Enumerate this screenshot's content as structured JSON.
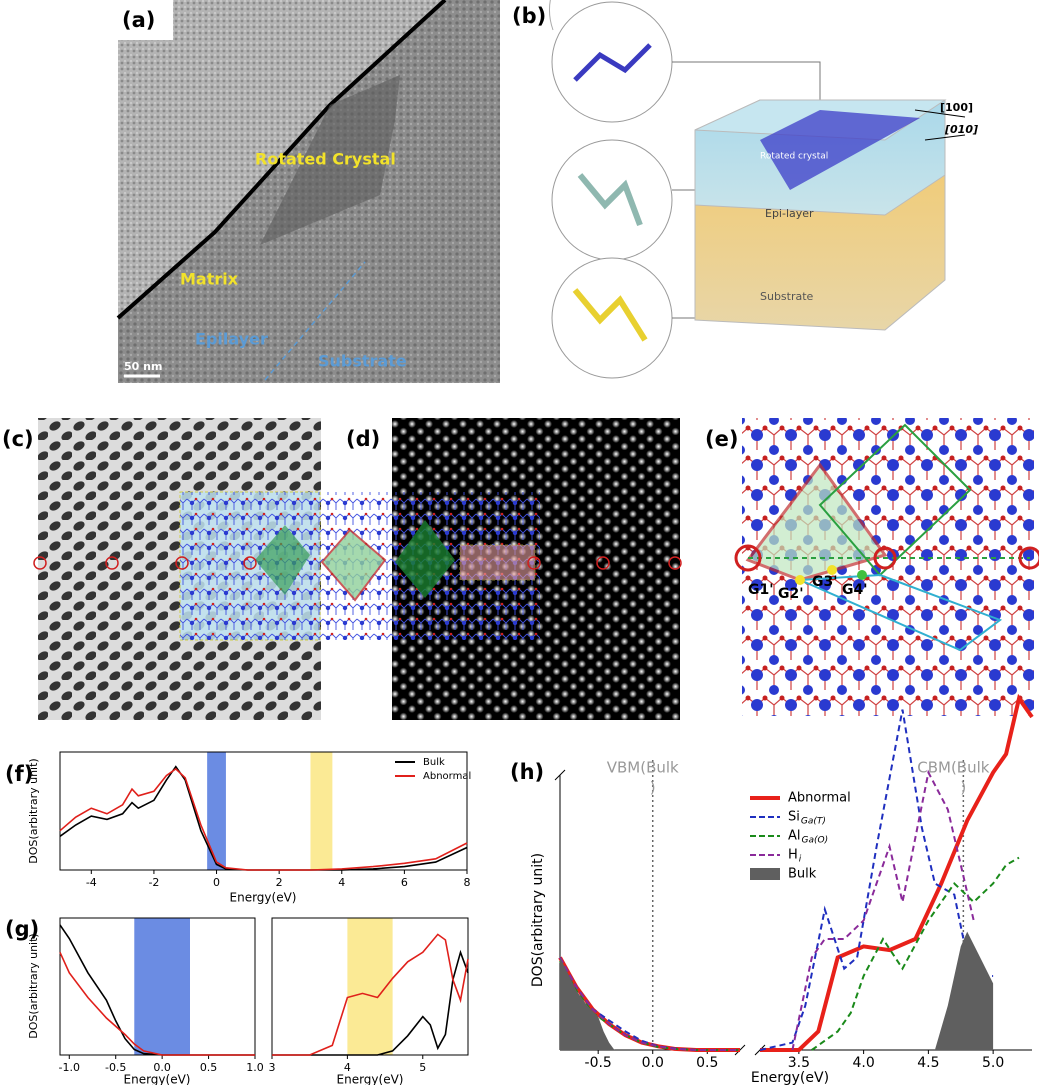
{
  "figure": {
    "a": {
      "label": "(a)",
      "rotated_crystal": "Rotated Crystal",
      "matrix": "Matrix",
      "epilayer": "Epilayer",
      "substrate": "Substrate",
      "scale": "50 nm"
    },
    "b": {
      "label": "(b)",
      "dir1": "[100]",
      "dir2": "[010]",
      "rotated_crystal": "Rotated crystal",
      "epi_layer": "Epi-layer",
      "substrate": "Substrate"
    },
    "c": {
      "label": "(c)"
    },
    "d": {
      "label": "(d)"
    },
    "e": {
      "label": "(e)",
      "sites": [
        "G1'",
        "G2'",
        "G3'",
        "G4'"
      ]
    }
  },
  "chart_data": [
    {
      "type": "line",
      "panel_label": "(f)",
      "xlabel": "Energy(eV)",
      "ylabel": "DOS(arbitrary unit)",
      "panels": [
        {
          "xlim": [
            -5,
            8
          ],
          "xticks": [
            -4,
            -2,
            0,
            2,
            4,
            6,
            8
          ],
          "spans": [
            {
              "from": -0.3,
              "to": 0.3,
              "color": "#5b7fe0"
            },
            {
              "from": 3.0,
              "to": 3.7,
              "color": "#fbe88a"
            }
          ]
        }
      ],
      "ylim": [
        0,
        1.05
      ],
      "legend": "upper right",
      "series": [
        {
          "name": "Bulk",
          "color": "#000000",
          "x": [
            -5,
            -4.5,
            -4,
            -3.5,
            -3,
            -2.7,
            -2.5,
            -2,
            -1.6,
            -1.3,
            -1,
            -0.5,
            0,
            0.3,
            1,
            2,
            3,
            4,
            5,
            6,
            7,
            8
          ],
          "values": [
            0.3,
            0.4,
            0.48,
            0.45,
            0.5,
            0.6,
            0.55,
            0.62,
            0.8,
            0.92,
            0.8,
            0.35,
            0.05,
            0.01,
            0,
            0,
            0,
            0,
            0.01,
            0.03,
            0.07,
            0.2
          ]
        },
        {
          "name": "Abnormal",
          "color": "#e0201b",
          "x": [
            -5,
            -4.5,
            -4,
            -3.5,
            -3,
            -2.7,
            -2.5,
            -2,
            -1.6,
            -1.3,
            -1,
            -0.5,
            0,
            0.3,
            1,
            2,
            3,
            4,
            5,
            6,
            7,
            8
          ],
          "values": [
            0.35,
            0.47,
            0.55,
            0.5,
            0.58,
            0.72,
            0.66,
            0.7,
            0.84,
            0.9,
            0.82,
            0.4,
            0.07,
            0.02,
            0,
            0,
            0,
            0.01,
            0.03,
            0.06,
            0.1,
            0.24
          ]
        }
      ]
    },
    {
      "type": "line",
      "panel_label": "(g)",
      "xlabel": "Energy(eV)",
      "ylabel": "DOS(arbitrary unit)",
      "panels": [
        {
          "xlim": [
            -1.1,
            1.0
          ],
          "xticks": [
            {
              "value": -1,
              "label": "-1.0"
            },
            -0.5,
            {
              "value": 0,
              "label": "0.0"
            },
            0.5,
            {
              "value": 1,
              "label": "1.0"
            }
          ],
          "spans": [
            {
              "from": -0.3,
              "to": 0.3,
              "color": "#5b7fe0"
            }
          ]
        },
        {
          "xlim": [
            3,
            5.6
          ],
          "xticks": [
            3,
            4,
            5
          ],
          "spans": [
            {
              "from": 4.0,
              "to": 4.6,
              "color": "#fbe88a"
            }
          ]
        }
      ],
      "ylim": [
        0,
        1
      ],
      "series": [
        {
          "color": "#000000",
          "x": [
            -1.1,
            -1.0,
            -0.8,
            -0.6,
            -0.5,
            -0.4,
            -0.3,
            -0.2,
            0,
            1.0,
            null,
            3,
            4.4,
            4.6,
            4.8,
            5.0,
            5.1,
            5.2,
            5.3,
            5.4,
            5.5,
            5.6
          ],
          "values": [
            0.95,
            0.85,
            0.6,
            0.4,
            0.25,
            0.12,
            0.04,
            0.01,
            0,
            0,
            null,
            0,
            0,
            0.03,
            0.14,
            0.28,
            0.22,
            0.05,
            0.15,
            0.55,
            0.75,
            0.6
          ]
        },
        {
          "color": "#e0201b",
          "x": [
            -1.1,
            -1.0,
            -0.8,
            -0.6,
            -0.4,
            -0.3,
            -0.2,
            0,
            1.0,
            null,
            3,
            3.5,
            3.8,
            4.0,
            4.2,
            4.4,
            4.6,
            4.8,
            5.0,
            5.2,
            5.3,
            5.4,
            5.5,
            5.6
          ],
          "values": [
            0.75,
            0.6,
            0.42,
            0.27,
            0.15,
            0.08,
            0.03,
            0,
            0,
            null,
            0,
            0,
            0.07,
            0.42,
            0.45,
            0.42,
            0.56,
            0.68,
            0.75,
            0.88,
            0.84,
            0.55,
            0.4,
            0.7
          ]
        }
      ]
    },
    {
      "type": "line",
      "panel_label": "(h)",
      "xlabel": "Energy(eV)",
      "ylabel": "DOS(arbitrary unit)",
      "panels": [
        {
          "xlim": [
            -0.85,
            0.8
          ],
          "xticks": [
            -0.5,
            {
              "value": 0,
              "label": "0.0"
            },
            0.5
          ],
          "vlines": [
            {
              "value": 0,
              "label": [
                "VBM(Bulk",
                ")"
              ]
            }
          ]
        },
        {
          "xlim": [
            3.2,
            5.3
          ],
          "xticks": [
            3.5,
            {
              "value": 4,
              "label": "4.0"
            },
            4.5,
            {
              "value": 5,
              "label": "5.0"
            }
          ],
          "vlines": [
            {
              "value": 4.77,
              "label": [
                "CBM(Bulk",
                ")"
              ]
            }
          ]
        }
      ],
      "ylim": [
        0,
        1
      ],
      "legend": "upper center",
      "series": [
        {
          "name": "Abnormal",
          "color": "#e8211a",
          "width": 4,
          "x": [
            -0.85,
            -0.7,
            -0.55,
            -0.4,
            -0.25,
            -0.1,
            0.05,
            0.2,
            0.4,
            0.8,
            null,
            3.2,
            3.5,
            3.65,
            3.8,
            4.0,
            4.2,
            4.4,
            4.6,
            4.8,
            5.0,
            5.1,
            5.2,
            5.3
          ],
          "values": [
            0.25,
            0.17,
            0.11,
            0.07,
            0.04,
            0.02,
            0.01,
            0.003,
            0,
            0,
            null,
            0,
            0,
            0.05,
            0.25,
            0.28,
            0.27,
            0.3,
            0.45,
            0.62,
            0.75,
            0.8,
            0.95,
            0.9
          ]
        },
        {
          "name": "Si",
          "subscript": "Ga(T)",
          "color": "#1f2fbf",
          "dashed": true,
          "x": [
            -0.85,
            -0.7,
            -0.55,
            -0.4,
            -0.25,
            -0.1,
            0.05,
            0.2,
            0.4,
            0.8,
            null,
            3.2,
            3.45,
            3.55,
            3.7,
            3.85,
            3.95,
            4.1,
            4.3,
            4.45,
            4.55,
            4.7,
            4.8,
            4.9,
            5.0
          ],
          "values": [
            0.25,
            0.17,
            0.11,
            0.08,
            0.05,
            0.025,
            0.01,
            0.004,
            0,
            0,
            null,
            0,
            0.02,
            0.12,
            0.38,
            0.22,
            0.25,
            0.55,
            0.92,
            0.6,
            0.45,
            0.42,
            0.25,
            0.2,
            0.2
          ]
        },
        {
          "name": "Al",
          "subscript": "Ga(O)",
          "color": "#1a8a1a",
          "dashed": true,
          "x": [
            -0.85,
            -0.7,
            -0.55,
            -0.4,
            -0.25,
            -0.1,
            0.05,
            0.2,
            0.4,
            0.8,
            null,
            3.6,
            3.8,
            3.9,
            4.0,
            4.15,
            4.3,
            4.5,
            4.7,
            4.85,
            5.0,
            5.1,
            5.2
          ],
          "values": [
            0.24,
            0.16,
            0.1,
            0.07,
            0.04,
            0.02,
            0.008,
            0.003,
            0,
            0,
            null,
            0,
            0.05,
            0.1,
            0.2,
            0.3,
            0.22,
            0.35,
            0.45,
            0.4,
            0.45,
            0.5,
            0.52
          ]
        },
        {
          "name": "H",
          "subscript": "i",
          "color": "#8a2a9a",
          "dashed": true,
          "x": [
            -0.85,
            -0.7,
            -0.55,
            -0.4,
            -0.25,
            -0.1,
            0.05,
            0.2,
            0.4,
            0.8,
            null,
            3.45,
            3.6,
            3.7,
            3.85,
            4.0,
            4.2,
            4.3,
            4.5,
            4.65,
            4.75,
            4.85
          ],
          "values": [
            0.25,
            0.17,
            0.11,
            0.07,
            0.04,
            0.02,
            0.01,
            0.003,
            0,
            0,
            null,
            0,
            0.25,
            0.3,
            0.3,
            0.35,
            0.55,
            0.4,
            0.75,
            0.65,
            0.5,
            0.35
          ]
        },
        {
          "name": "Bulk",
          "color": "#5f5f5f",
          "fill": true,
          "x": [
            -0.85,
            -0.7,
            -0.6,
            -0.5,
            -0.45,
            -0.4,
            -0.35,
            null,
            4.55,
            4.65,
            4.75,
            4.8,
            4.9,
            5.0
          ],
          "values": [
            0.25,
            0.16,
            0.12,
            0.09,
            0.05,
            0.02,
            0,
            null,
            0,
            0.12,
            0.28,
            0.32,
            0.25,
            0.18
          ]
        }
      ]
    }
  ]
}
